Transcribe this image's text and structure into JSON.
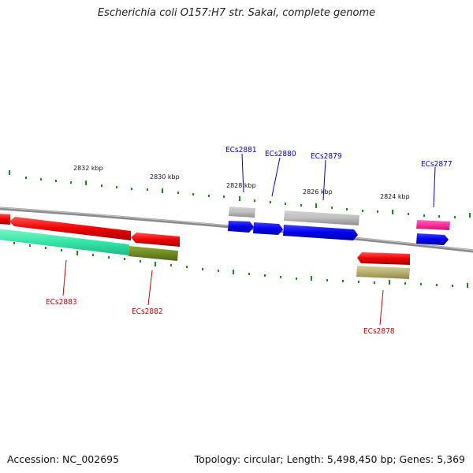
{
  "title": "Escherichia coli O157:H7 str. Sakai, complete genome",
  "footer": {
    "accession": "Accession: NC_002695",
    "summary": "Topology: circular; Length: 5,498,450 bp; Genes: 5,369"
  },
  "scale_labels": [
    "2832 kbp",
    "2830 kbp",
    "2828 kbp",
    "2826 kbp",
    "2824 kbp"
  ],
  "forward_gene_labels": [
    "ECs2881",
    "ECs2880",
    "ECs2879",
    "ECs2877"
  ],
  "reverse_gene_labels": [
    "ECs2883",
    "ECs2882",
    "ECs2878"
  ],
  "colors": {
    "forward_label": "#0000cc",
    "reverse_label": "#cc0000",
    "forward_cds": "#0000ee",
    "reverse_cds": "#ee0000",
    "gene_grey": "#b8b8b8",
    "pink": "#ff2d9a",
    "teal": "#33e6a6",
    "olive": "#6e8a22",
    "khaki": "#b8b070",
    "backbone": "#888888",
    "tick": "#1a8a1a"
  }
}
